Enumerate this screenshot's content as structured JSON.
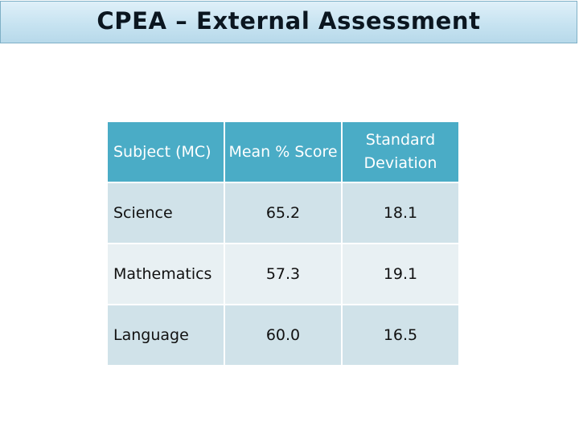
{
  "title": "CPEA – External Assessment",
  "table": {
    "headers": [
      "Subject (MC)",
      "Mean % Score",
      "Standard Deviation"
    ],
    "rows": [
      [
        "Science",
        "65.2",
        "18.1"
      ],
      [
        "Mathematics",
        "57.3",
        "19.1"
      ],
      [
        "Language",
        "60.0",
        "16.5"
      ]
    ]
  },
  "colors": {
    "header_fill": "#4aacc6",
    "row_fill_dark": "#d0e2e9",
    "row_fill_light": "#e8f0f3",
    "title_bar_fill": "#c7e3f1"
  }
}
